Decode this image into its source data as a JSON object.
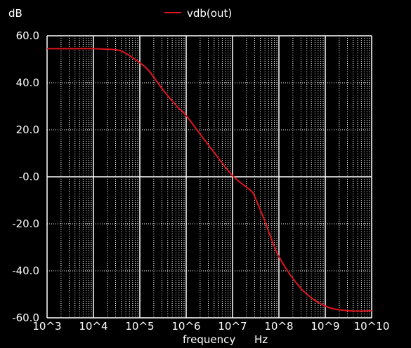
{
  "chart_data": {
    "type": "line",
    "title": "",
    "ylabel": "dB",
    "xlabel": "frequency",
    "xunit": "Hz",
    "xscale": "log",
    "xlim": [
      1000,
      10000000000
    ],
    "ylim": [
      -60,
      60
    ],
    "grid": true,
    "legend_position": "top-center",
    "colors": {
      "background": "#000000",
      "grid": "#ffffff",
      "series": "#e0141e"
    },
    "x_tick_labels": [
      "10^3",
      "10^4",
      "10^5",
      "10^6",
      "10^7",
      "10^8",
      "10^9",
      "10^10"
    ],
    "y_tick_labels": [
      "60.0",
      "40.0",
      "20.0",
      "-0.0",
      "-20.0",
      "-40.0",
      "-60.0"
    ],
    "series": [
      {
        "name": "vdb(out)",
        "x": [
          1000,
          3162,
          10000,
          31623,
          50119,
          100000,
          158489,
          316228,
          630957,
          1000000,
          3162278,
          10000000,
          25118864,
          31622777,
          50118723,
          100000000,
          316227766,
          1000000000,
          3162277660,
          10000000000
        ],
        "y": [
          54.5,
          54.5,
          54.5,
          54.0,
          52.5,
          48.5,
          45.0,
          37.0,
          30.0,
          26.0,
          13.0,
          0.5,
          -6.0,
          -9.5,
          -19.0,
          -34.0,
          -48.0,
          -55.0,
          -57.0,
          -57.0
        ]
      }
    ]
  }
}
